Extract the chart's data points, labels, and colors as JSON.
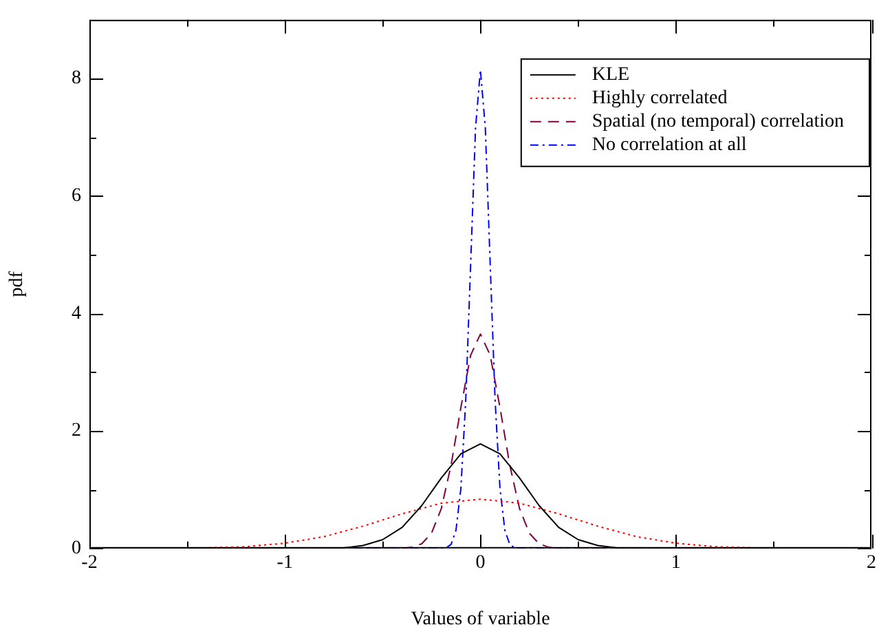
{
  "chart_data": {
    "type": "line",
    "xlabel": "Values of variable",
    "ylabel": "pdf",
    "xlim": [
      -2,
      2
    ],
    "ylim": [
      0,
      9
    ],
    "xticks": [
      -2,
      {
        "value": -1.5,
        "label": null
      },
      -1,
      {
        "value": -0.5,
        "label": null
      },
      0,
      {
        "value": 0.5,
        "label": null
      },
      1,
      {
        "value": 1.5,
        "label": null
      },
      2
    ],
    "yticks": [
      0,
      {
        "value": 1,
        "label": null
      },
      2,
      {
        "value": 3,
        "label": null
      },
      4,
      {
        "value": 5,
        "label": null
      },
      6,
      {
        "value": 7,
        "label": null
      },
      8
    ],
    "grid": false,
    "legend": "top right",
    "marker": "none",
    "series": [
      {
        "name": "KLE",
        "color": "#000000",
        "line_style": "solid",
        "x": [
          -2,
          -1,
          -0.8,
          -0.7,
          -0.6,
          -0.5,
          -0.4,
          -0.3,
          -0.2,
          -0.1,
          0,
          0.1,
          0.2,
          0.3,
          0.4,
          0.5,
          0.6,
          0.7,
          0.8,
          1,
          2
        ],
        "values": [
          0,
          0,
          0,
          0.01,
          0.05,
          0.15,
          0.36,
          0.73,
          1.2,
          1.61,
          1.78,
          1.61,
          1.2,
          0.73,
          0.36,
          0.15,
          0.05,
          0.01,
          0,
          0,
          0
        ]
      },
      {
        "name": "Highly correlated",
        "color": "#ff0000",
        "line_style": "dotted",
        "x": [
          -1.5,
          -1.4,
          -1.2,
          -1,
          -0.8,
          -0.6,
          -0.4,
          -0.2,
          0,
          0.2,
          0.4,
          0.6,
          0.8,
          1,
          1.2,
          1.4,
          1.5
        ],
        "values": [
          0,
          0.01,
          0.03,
          0.09,
          0.2,
          0.38,
          0.59,
          0.77,
          0.84,
          0.77,
          0.59,
          0.38,
          0.2,
          0.09,
          0.03,
          0.01,
          0
        ]
      },
      {
        "name": "Spatial (no temporal) correlation",
        "color": "#800040",
        "line_style": "dashed",
        "x": [
          -1.5,
          -0.4,
          -0.35,
          -0.3,
          -0.25,
          -0.2,
          -0.15,
          -0.1,
          -0.05,
          0,
          0.05,
          0.1,
          0.15,
          0.2,
          0.25,
          0.3,
          0.35,
          0.4,
          1.5
        ],
        "values": [
          0,
          0,
          0.02,
          0.08,
          0.26,
          0.68,
          1.42,
          2.4,
          3.29,
          3.65,
          3.29,
          2.4,
          1.42,
          0.68,
          0.26,
          0.08,
          0.02,
          0,
          0
        ]
      },
      {
        "name": "No correlation at all",
        "color": "#0000ff",
        "line_style": "dashdot",
        "x": [
          -1.5,
          -0.2,
          -0.175,
          -0.15,
          -0.125,
          -0.1,
          -0.075,
          -0.05,
          -0.025,
          0,
          0.025,
          0.05,
          0.075,
          0.1,
          0.125,
          0.15,
          0.175,
          0.2,
          1.5
        ],
        "values": [
          0,
          0,
          0.01,
          0.07,
          0.31,
          1.02,
          2.53,
          4.84,
          7.16,
          8.15,
          7.16,
          4.84,
          2.53,
          1.02,
          0.31,
          0.07,
          0.01,
          0,
          0
        ]
      }
    ]
  }
}
